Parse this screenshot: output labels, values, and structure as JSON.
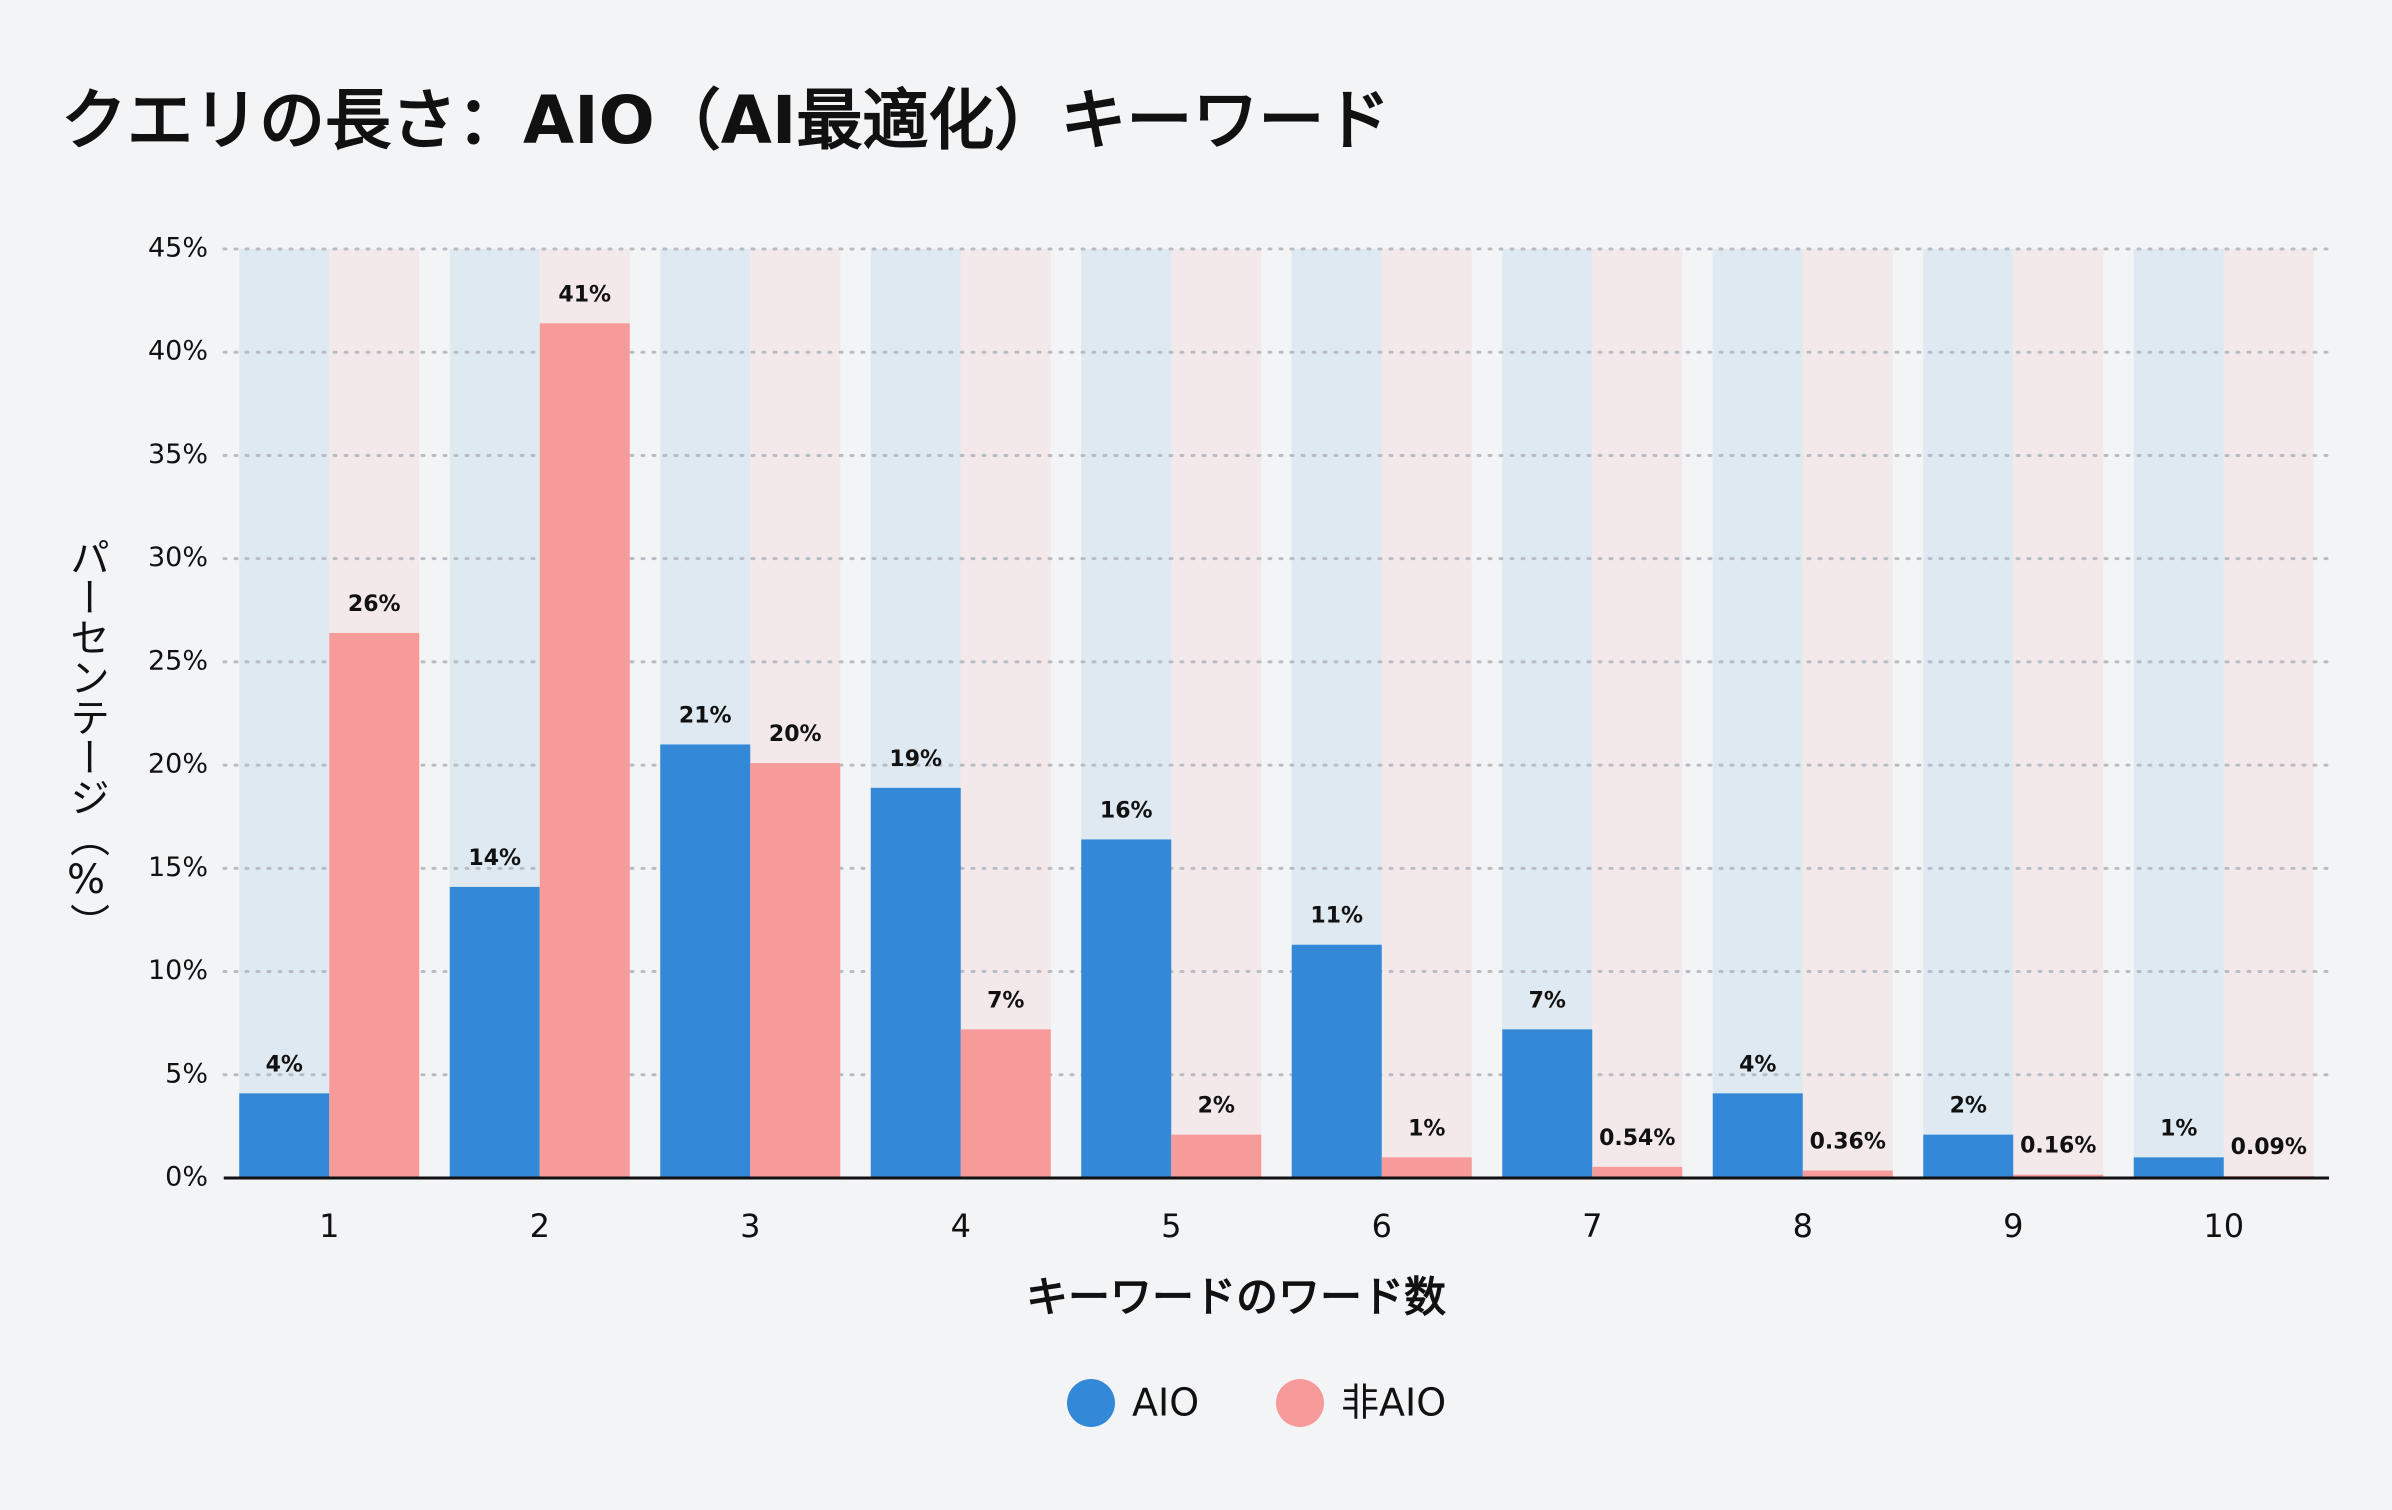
{
  "chart_data": {
    "type": "bar",
    "title": "クエリの長さ：AIO（AI最適化）キーワード",
    "x_label": "キーワードのワード数",
    "y_label": "パーセンテージ（%）",
    "categories": [
      "1",
      "2",
      "3",
      "4",
      "5",
      "6",
      "7",
      "8",
      "9",
      "10"
    ],
    "series": [
      {
        "name": "AIO",
        "color": "#3388d8",
        "values": [
          4.1,
          14.1,
          21.0,
          18.9,
          16.4,
          11.3,
          7.2,
          4.1,
          2.1,
          1.0
        ],
        "value_labels": [
          "4%",
          "14%",
          "21%",
          "19%",
          "16%",
          "11%",
          "7%",
          "4%",
          "2%",
          "1%"
        ]
      },
      {
        "name": "非AIO",
        "color": "#f79a9a",
        "values": [
          26.4,
          41.4,
          20.1,
          7.2,
          2.1,
          1.0,
          0.54,
          0.36,
          0.16,
          0.09
        ],
        "value_labels": [
          "26%",
          "41%",
          "20%",
          "7%",
          "2%",
          "1%",
          "0.54%",
          "0.36%",
          "0.16%",
          "0.09%"
        ]
      }
    ],
    "ylim": [
      0,
      45
    ],
    "yticks": [
      {
        "value": 0,
        "label": "0%"
      },
      {
        "value": 5,
        "label": "5%"
      },
      {
        "value": 10,
        "label": "10%"
      },
      {
        "value": 15,
        "label": "15%"
      },
      {
        "value": 20,
        "label": "20%"
      },
      {
        "value": 25,
        "label": "25%"
      },
      {
        "value": 30,
        "label": "30%"
      },
      {
        "value": 35,
        "label": "35%"
      },
      {
        "value": 40,
        "label": "40%"
      },
      {
        "value": 45,
        "label": "45%"
      }
    ],
    "grid": true
  }
}
